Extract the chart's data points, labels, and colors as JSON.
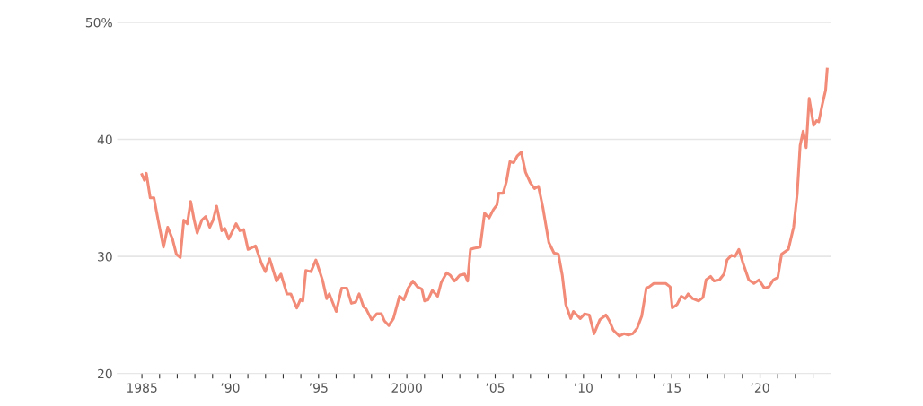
{
  "chart_data": {
    "type": "line",
    "xlim": [
      1983.6,
      2024.0
    ],
    "ylim": [
      20,
      50
    ],
    "xticks": [
      {
        "value": 1985,
        "label": "1985"
      },
      {
        "value": 1986,
        "label": null
      },
      {
        "value": 1987,
        "label": null
      },
      {
        "value": 1988,
        "label": null
      },
      {
        "value": 1989,
        "label": null
      },
      {
        "value": 1990,
        "label": "’90"
      },
      {
        "value": 1991,
        "label": null
      },
      {
        "value": 1992,
        "label": null
      },
      {
        "value": 1993,
        "label": null
      },
      {
        "value": 1994,
        "label": null
      },
      {
        "value": 1995,
        "label": "’95"
      },
      {
        "value": 1996,
        "label": null
      },
      {
        "value": 1997,
        "label": null
      },
      {
        "value": 1998,
        "label": null
      },
      {
        "value": 1999,
        "label": null
      },
      {
        "value": 2000,
        "label": "2000"
      },
      {
        "value": 2001,
        "label": null
      },
      {
        "value": 2002,
        "label": null
      },
      {
        "value": 2003,
        "label": null
      },
      {
        "value": 2004,
        "label": null
      },
      {
        "value": 2005,
        "label": "’05"
      },
      {
        "value": 2006,
        "label": null
      },
      {
        "value": 2007,
        "label": null
      },
      {
        "value": 2008,
        "label": null
      },
      {
        "value": 2009,
        "label": null
      },
      {
        "value": 2010,
        "label": "’10"
      },
      {
        "value": 2011,
        "label": null
      },
      {
        "value": 2012,
        "label": null
      },
      {
        "value": 2013,
        "label": null
      },
      {
        "value": 2014,
        "label": null
      },
      {
        "value": 2015,
        "label": "’15"
      },
      {
        "value": 2016,
        "label": null
      },
      {
        "value": 2017,
        "label": null
      },
      {
        "value": 2018,
        "label": null
      },
      {
        "value": 2019,
        "label": null
      },
      {
        "value": 2020,
        "label": "’20"
      },
      {
        "value": 2021,
        "label": null
      },
      {
        "value": 2022,
        "label": null
      },
      {
        "value": 2023,
        "label": null
      }
    ],
    "yticks": [
      20,
      30,
      40,
      {
        "value": 50,
        "label": "50%"
      }
    ],
    "grid": "y",
    "marker": "none",
    "line_style": "solid",
    "series": [
      {
        "color": "#f28b78",
        "x": [
          1985.0,
          1985.14,
          1985.25,
          1985.47,
          1985.68,
          1985.93,
          1986.22,
          1986.46,
          1986.73,
          1986.95,
          1987.17,
          1987.37,
          1987.57,
          1987.76,
          1987.96,
          1988.13,
          1988.39,
          1988.61,
          1988.84,
          1989.03,
          1989.23,
          1989.52,
          1989.69,
          1989.91,
          1990.33,
          1990.54,
          1990.76,
          1991.01,
          1991.43,
          1991.77,
          1991.99,
          1992.23,
          1992.62,
          1992.87,
          1993.21,
          1993.43,
          1993.77,
          1993.97,
          1994.11,
          1994.28,
          1994.57,
          1994.85,
          1995.24,
          1995.46,
          1995.61,
          1996.0,
          1996.31,
          1996.6,
          1996.86,
          1997.1,
          1997.3,
          1997.55,
          1997.7,
          1998.0,
          1998.3,
          1998.56,
          1998.73,
          1998.98,
          1999.24,
          1999.58,
          1999.83,
          2000.08,
          2000.34,
          2000.6,
          2000.85,
          2001.0,
          2001.2,
          2001.44,
          2001.74,
          2001.95,
          2002.25,
          2002.45,
          2002.7,
          2003.0,
          2003.27,
          2003.44,
          2003.6,
          2003.8,
          2004.15,
          2004.4,
          2004.66,
          2004.9,
          2005.1,
          2005.2,
          2005.45,
          2005.64,
          2005.84,
          2006.04,
          2006.26,
          2006.48,
          2006.72,
          2006.99,
          2007.23,
          2007.45,
          2007.7,
          2008.04,
          2008.33,
          2008.58,
          2008.8,
          2009.0,
          2009.28,
          2009.43,
          2009.82,
          2010.07,
          2010.33,
          2010.6,
          2010.93,
          2011.27,
          2011.47,
          2011.69,
          2012.03,
          2012.29,
          2012.54,
          2012.79,
          2013.05,
          2013.3,
          2013.56,
          2013.72,
          2013.98,
          2014.66,
          2014.91,
          2015.03,
          2015.3,
          2015.54,
          2015.76,
          2015.93,
          2016.18,
          2016.52,
          2016.77,
          2016.94,
          2017.2,
          2017.4,
          2017.7,
          2017.96,
          2018.13,
          2018.38,
          2018.58,
          2018.8,
          2019.02,
          2019.36,
          2019.65,
          2019.94,
          2020.24,
          2020.5,
          2020.75,
          2021.0,
          2021.22,
          2021.6,
          2021.9,
          2022.1,
          2022.27,
          2022.44,
          2022.61,
          2022.78,
          2023.03,
          2023.2,
          2023.32,
          2023.54,
          2023.71,
          2023.8
        ],
        "values": [
          37.0,
          36.5,
          37.1,
          35.0,
          35.0,
          33.0,
          30.8,
          32.5,
          31.5,
          30.2,
          29.9,
          33.1,
          32.8,
          34.7,
          33.1,
          32.0,
          33.1,
          33.4,
          32.5,
          33.1,
          34.3,
          32.2,
          32.4,
          31.5,
          32.8,
          32.2,
          32.3,
          30.6,
          30.9,
          29.4,
          28.7,
          29.8,
          27.9,
          28.5,
          26.8,
          26.8,
          25.6,
          26.3,
          26.2,
          28.8,
          28.7,
          29.7,
          27.9,
          26.4,
          26.8,
          25.3,
          27.3,
          27.3,
          26.0,
          26.1,
          26.8,
          25.7,
          25.5,
          24.6,
          25.1,
          25.1,
          24.5,
          24.1,
          24.7,
          26.6,
          26.3,
          27.3,
          27.9,
          27.4,
          27.2,
          26.2,
          26.3,
          27.1,
          26.6,
          27.8,
          28.6,
          28.4,
          27.9,
          28.4,
          28.5,
          27.9,
          30.6,
          30.7,
          30.8,
          33.7,
          33.3,
          34.0,
          34.4,
          35.4,
          35.4,
          36.4,
          38.1,
          38.0,
          38.6,
          38.9,
          37.2,
          36.3,
          35.8,
          36.0,
          34.2,
          31.2,
          30.3,
          30.2,
          28.4,
          25.9,
          24.7,
          25.3,
          24.7,
          25.1,
          25.0,
          23.4,
          24.6,
          25.0,
          24.5,
          23.7,
          23.2,
          23.4,
          23.3,
          23.4,
          23.9,
          24.9,
          27.3,
          27.4,
          27.7,
          27.7,
          27.4,
          25.6,
          25.9,
          26.6,
          26.4,
          26.8,
          26.4,
          26.2,
          26.5,
          28.0,
          28.3,
          27.9,
          28.0,
          28.5,
          29.7,
          30.1,
          30.0,
          30.6,
          29.5,
          28.0,
          27.7,
          28.0,
          27.3,
          27.4,
          28.0,
          28.2,
          30.2,
          30.6,
          32.5,
          35.3,
          39.5,
          40.7,
          39.3,
          43.5,
          41.2,
          41.6,
          41.5,
          43.1,
          44.2,
          46.0
        ]
      }
    ]
  }
}
